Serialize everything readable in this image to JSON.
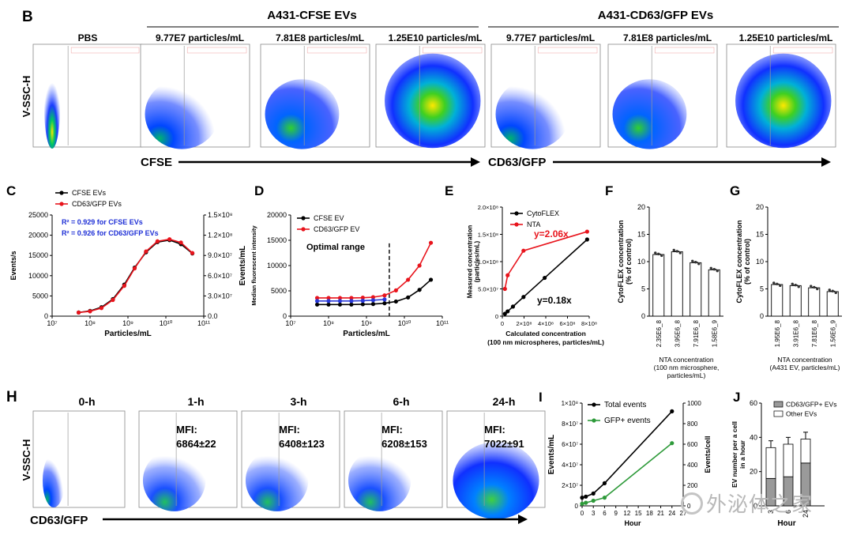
{
  "flow_b": {
    "panel_label": "B",
    "yaxis": "V-SSC-H",
    "group1": "A431-CFSE EVs",
    "group2": "A431-CD63/GFP EVs",
    "xarrow1": "CFSE",
    "xarrow2": "CD63/GFP",
    "plots": [
      {
        "title": "PBS"
      },
      {
        "title": "9.77E7 particles/mL"
      },
      {
        "title": "7.81E8 particles/mL"
      },
      {
        "title": "1.25E10 particles/mL"
      },
      {
        "title": "9.77E7 particles/mL"
      },
      {
        "title": "7.81E8 particles/mL"
      },
      {
        "title": "1.25E10 particles/mL"
      }
    ]
  },
  "flow_h": {
    "panel_label": "H",
    "yaxis": "V-SSC-H",
    "xarrow": "CD63/GFP",
    "plots": [
      {
        "title": "0-h",
        "mfi_label": "",
        "mfi": ""
      },
      {
        "title": "1-h",
        "mfi_label": "MFI:",
        "mfi": "6864±22"
      },
      {
        "title": "3-h",
        "mfi_label": "MFI:",
        "mfi": "6408±123"
      },
      {
        "title": "6-h",
        "mfi_label": "MFI:",
        "mfi": "6208±153"
      },
      {
        "title": "24-h",
        "mfi_label": "MFI:",
        "mfi": "7022±91"
      }
    ]
  },
  "chart_data": [
    {
      "id": "C",
      "type": "line",
      "xlabel": "Particles/mL",
      "ylabel": "Events/s",
      "y2label": "Events/mL",
      "xscale": "log",
      "xlim": [
        10000000,
        100000000000
      ],
      "xticks": [
        "10⁷",
        "10⁸",
        "10⁹",
        "10¹⁰",
        "10¹¹"
      ],
      "ylim": [
        0,
        25000
      ],
      "yticks": [
        "0",
        "5000",
        "10000",
        "15000",
        "20000",
        "25000"
      ],
      "y2ticks": [
        "0.0",
        "3.0×10⁷",
        "6.0×10⁷",
        "9.0×10⁷",
        "1.2×10⁸",
        "1.5×10⁸"
      ],
      "legend": "top-left",
      "annotations": [
        "R² = 0.929 for CFSE EVs",
        "R² = 0.926 for CD63/GFP EVs"
      ],
      "series": [
        {
          "name": "CFSE EVs",
          "color": "#000000",
          "x": [
            50000000,
            100000000,
            200000000,
            400000000,
            800000000,
            1500000000,
            3000000000,
            6000000000,
            12500000000,
            25000000000,
            50000000000
          ],
          "y": [
            900,
            1300,
            2200,
            4200,
            7800,
            12000,
            15800,
            18300,
            18800,
            17800,
            15500
          ]
        },
        {
          "name": "CD63/GFP EVs",
          "color": "#e8141c",
          "x": [
            50000000,
            100000000,
            200000000,
            400000000,
            800000000,
            1500000000,
            3000000000,
            6000000000,
            12500000000,
            25000000000,
            50000000000
          ],
          "y": [
            900,
            1200,
            2000,
            4000,
            7500,
            11800,
            16000,
            18500,
            19000,
            18200,
            15600
          ]
        }
      ]
    },
    {
      "id": "D",
      "type": "line",
      "xlabel": "Particles/mL",
      "ylabel": "Median fluorescent intensity",
      "xscale": "log",
      "xlim": [
        10000000,
        100000000000
      ],
      "xticks": [
        "10⁷",
        "10⁸",
        "10⁹",
        "10¹⁰",
        "10¹¹"
      ],
      "ylim": [
        0,
        20000
      ],
      "yticks": [
        "0",
        "5000",
        "10000",
        "15000",
        "20000"
      ],
      "legend": "top-left",
      "annotations": [
        "Optimal range"
      ],
      "threshold_x": 4000000000,
      "series": [
        {
          "name": "CFSE EV",
          "color": "#000000",
          "x": [
            50000000,
            100000000,
            200000000,
            400000000,
            800000000,
            1500000000,
            3000000000,
            6000000000,
            12500000000,
            25000000000,
            50000000000
          ],
          "y": [
            2300,
            2300,
            2300,
            2300,
            2350,
            2400,
            2550,
            2900,
            3700,
            5200,
            7200
          ]
        },
        {
          "name": "CD63/GFP EV",
          "color": "#e8141c",
          "x": [
            50000000,
            100000000,
            200000000,
            400000000,
            800000000,
            1500000000,
            3000000000,
            6000000000,
            12500000000,
            25000000000,
            50000000000
          ],
          "y": [
            3600,
            3600,
            3600,
            3600,
            3650,
            3750,
            4100,
            5100,
            7200,
            10000,
            14500
          ]
        },
        {
          "name": "",
          "color": "#2a3ad8",
          "x": [
            50000000,
            100000000,
            200000000,
            400000000,
            800000000,
            1500000000,
            3000000000
          ],
          "y": [
            3000,
            3000,
            3000,
            3000,
            3050,
            3150,
            3300
          ]
        }
      ]
    },
    {
      "id": "E",
      "type": "line",
      "xlabel": "Calculated concentration\n(100 nm microspheres, particles/mL)",
      "ylabel": "Measured concentration\n(particles/mL)",
      "xlim": [
        0,
        800000000
      ],
      "ylim": [
        0,
        200000000
      ],
      "xticks": [
        "0",
        "2×10⁸",
        "4×10⁸",
        "6×10⁸",
        "8×10⁸"
      ],
      "yticks": [
        "0",
        "5.0×10⁷",
        "1.0×10⁸",
        "1.5×10⁸",
        "2.0×10⁸"
      ],
      "legend": "top-left",
      "annotations": [
        "y=2.06x",
        "y=0.18x"
      ],
      "series": [
        {
          "name": "CytoFLEX",
          "color": "#000000",
          "x": [
            24000000,
            49000000,
            98000000,
            195000000,
            390000000,
            781000000
          ],
          "y": [
            4300000,
            8800000,
            17600000,
            35100000,
            70200000,
            140600000
          ]
        },
        {
          "name": "NTA",
          "color": "#e8141c",
          "x": [
            24000000,
            49000000,
            195000000,
            781000000
          ],
          "y": [
            50000000,
            75000000,
            120000000,
            155000000
          ]
        }
      ]
    },
    {
      "id": "F",
      "type": "bar",
      "ylabel": "CytoFLEX concentration\n(% of control)",
      "xlabel": "NTA concentration\n(100 nm microsphere,\nparticles/mL)",
      "ylim": [
        0,
        20
      ],
      "yticks": [
        "0",
        "5",
        "10",
        "15",
        "20"
      ],
      "categories": [
        "2.35E6_8",
        "3.95E6_8",
        "7.91E6_8",
        "1.58E6_9"
      ],
      "values": [
        11.3,
        11.8,
        9.8,
        8.5
      ]
    },
    {
      "id": "G",
      "type": "bar",
      "ylabel": "CytoFLEX concentration\n(% of control)",
      "xlabel": "NTA concentration\n(A431 EV, particles/mL)",
      "ylim": [
        0,
        20
      ],
      "yticks": [
        "0",
        "5",
        "10",
        "15",
        "20"
      ],
      "categories": [
        "1.95E6_8",
        "3.91E6_8",
        "7.81E6_8",
        "1.56E6_9"
      ],
      "values": [
        5.8,
        5.6,
        5.2,
        4.5
      ]
    },
    {
      "id": "I",
      "type": "line",
      "xlabel": "Hour",
      "ylabel": "Events/mL",
      "y2label": "Events/cell",
      "xlim": [
        0,
        27
      ],
      "xticks": [
        "0",
        "3",
        "6",
        "9",
        "12",
        "15",
        "18",
        "21",
        "24",
        "27"
      ],
      "ylim": [
        0,
        100000000
      ],
      "yticks": [
        "0",
        "2×10⁷",
        "4×10⁷",
        "6×10⁷",
        "8×10⁷",
        "1×10⁸"
      ],
      "y2ticks": [
        "0",
        "200",
        "400",
        "600",
        "800",
        "1000"
      ],
      "legend": "top-left",
      "series": [
        {
          "name": "Total events",
          "color": "#000000",
          "x": [
            0,
            1,
            3,
            6,
            24
          ],
          "y": [
            8000000,
            9000000,
            12000000,
            22000000,
            92000000
          ]
        },
        {
          "name": "GFP+ events",
          "color": "#2e9a3a",
          "x": [
            0,
            1,
            3,
            6,
            24
          ],
          "y": [
            2000000,
            3000000,
            5000000,
            8000000,
            61000000
          ]
        }
      ]
    },
    {
      "id": "J",
      "type": "bar",
      "xlabel": "Hour",
      "ylabel": "EV number per a cell\nin a hour",
      "ylim": [
        0,
        60
      ],
      "yticks": [
        "0",
        "20",
        "40",
        "60"
      ],
      "categories": [
        "3",
        "6",
        "24"
      ],
      "legend": "top-right",
      "series": [
        {
          "name": "CD63/GFP+ EVs",
          "color": "#9a9a9a",
          "values": [
            16,
            17,
            25
          ]
        },
        {
          "name": "Other EVs",
          "color": "#ffffff",
          "values": [
            18,
            19,
            14
          ]
        }
      ]
    }
  ]
}
